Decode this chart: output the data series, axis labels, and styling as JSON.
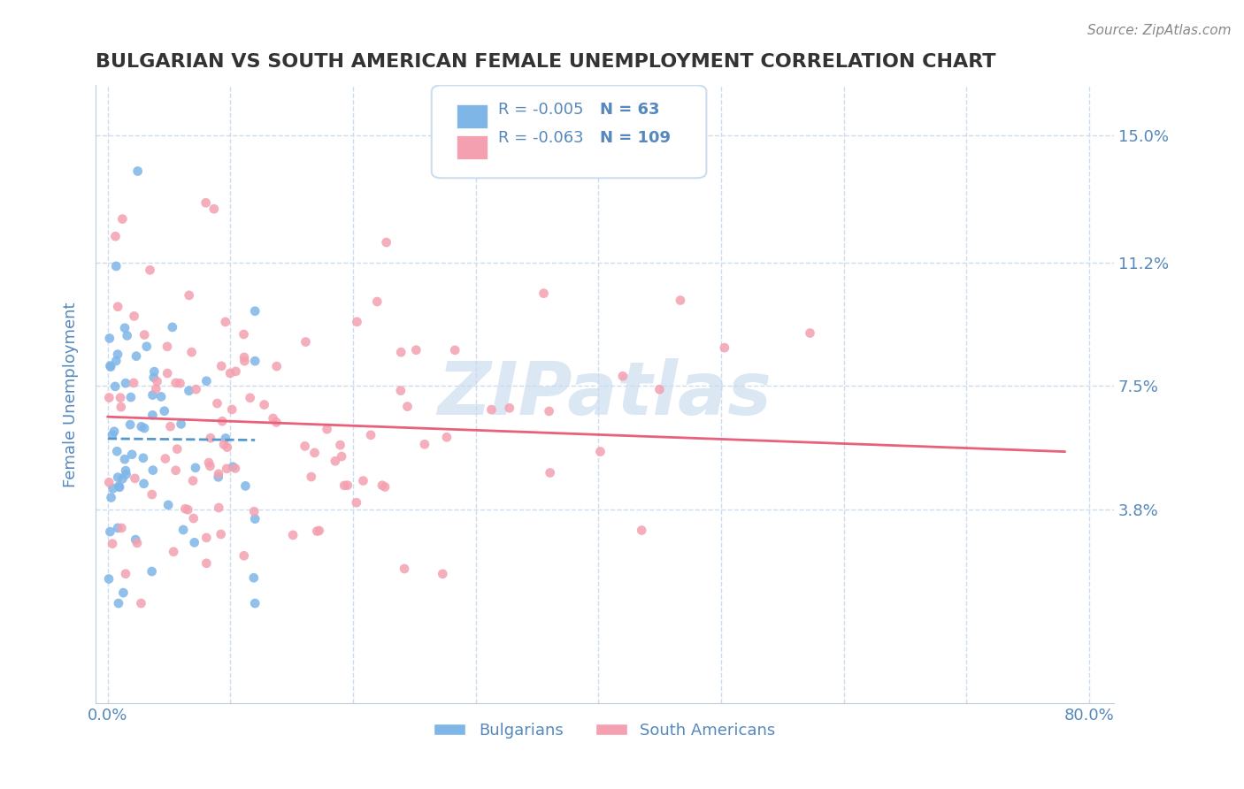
{
  "title": "BULGARIAN VS SOUTH AMERICAN FEMALE UNEMPLOYMENT CORRELATION CHART",
  "source_text": "Source: ZipAtlas.com",
  "xlabel": "",
  "ylabel": "Female Unemployment",
  "x_ticks": [
    0.0,
    0.1,
    0.2,
    0.3,
    0.4,
    0.5,
    0.6,
    0.7,
    0.8
  ],
  "x_tick_labels": [
    "0.0%",
    "",
    "",
    "",
    "",
    "",
    "",
    "",
    "80.0%"
  ],
  "y_ticks": [
    0.038,
    0.075,
    0.112,
    0.15
  ],
  "y_tick_labels": [
    "3.8%",
    "7.5%",
    "11.2%",
    "15.0%"
  ],
  "xlim": [
    -0.01,
    0.82
  ],
  "ylim": [
    -0.02,
    0.165
  ],
  "bg_color": "#ffffff",
  "grid_color": "#ccddee",
  "bulgarians_color": "#7eb6e8",
  "south_americans_color": "#f4a0b0",
  "trend_bulgarian_color": "#5599cc",
  "trend_sa_color": "#e8607a",
  "watermark": "ZIPatlas",
  "watermark_color": "#c5d8ee",
  "legend_R_bulgarian": "-0.005",
  "legend_N_bulgarian": "63",
  "legend_R_sa": "-0.063",
  "legend_N_sa": "109",
  "bulgarians_seed": 42,
  "south_americans_seed": 7,
  "title_color": "#333333",
  "axis_label_color": "#5588bb",
  "tick_label_color": "#5588bb"
}
